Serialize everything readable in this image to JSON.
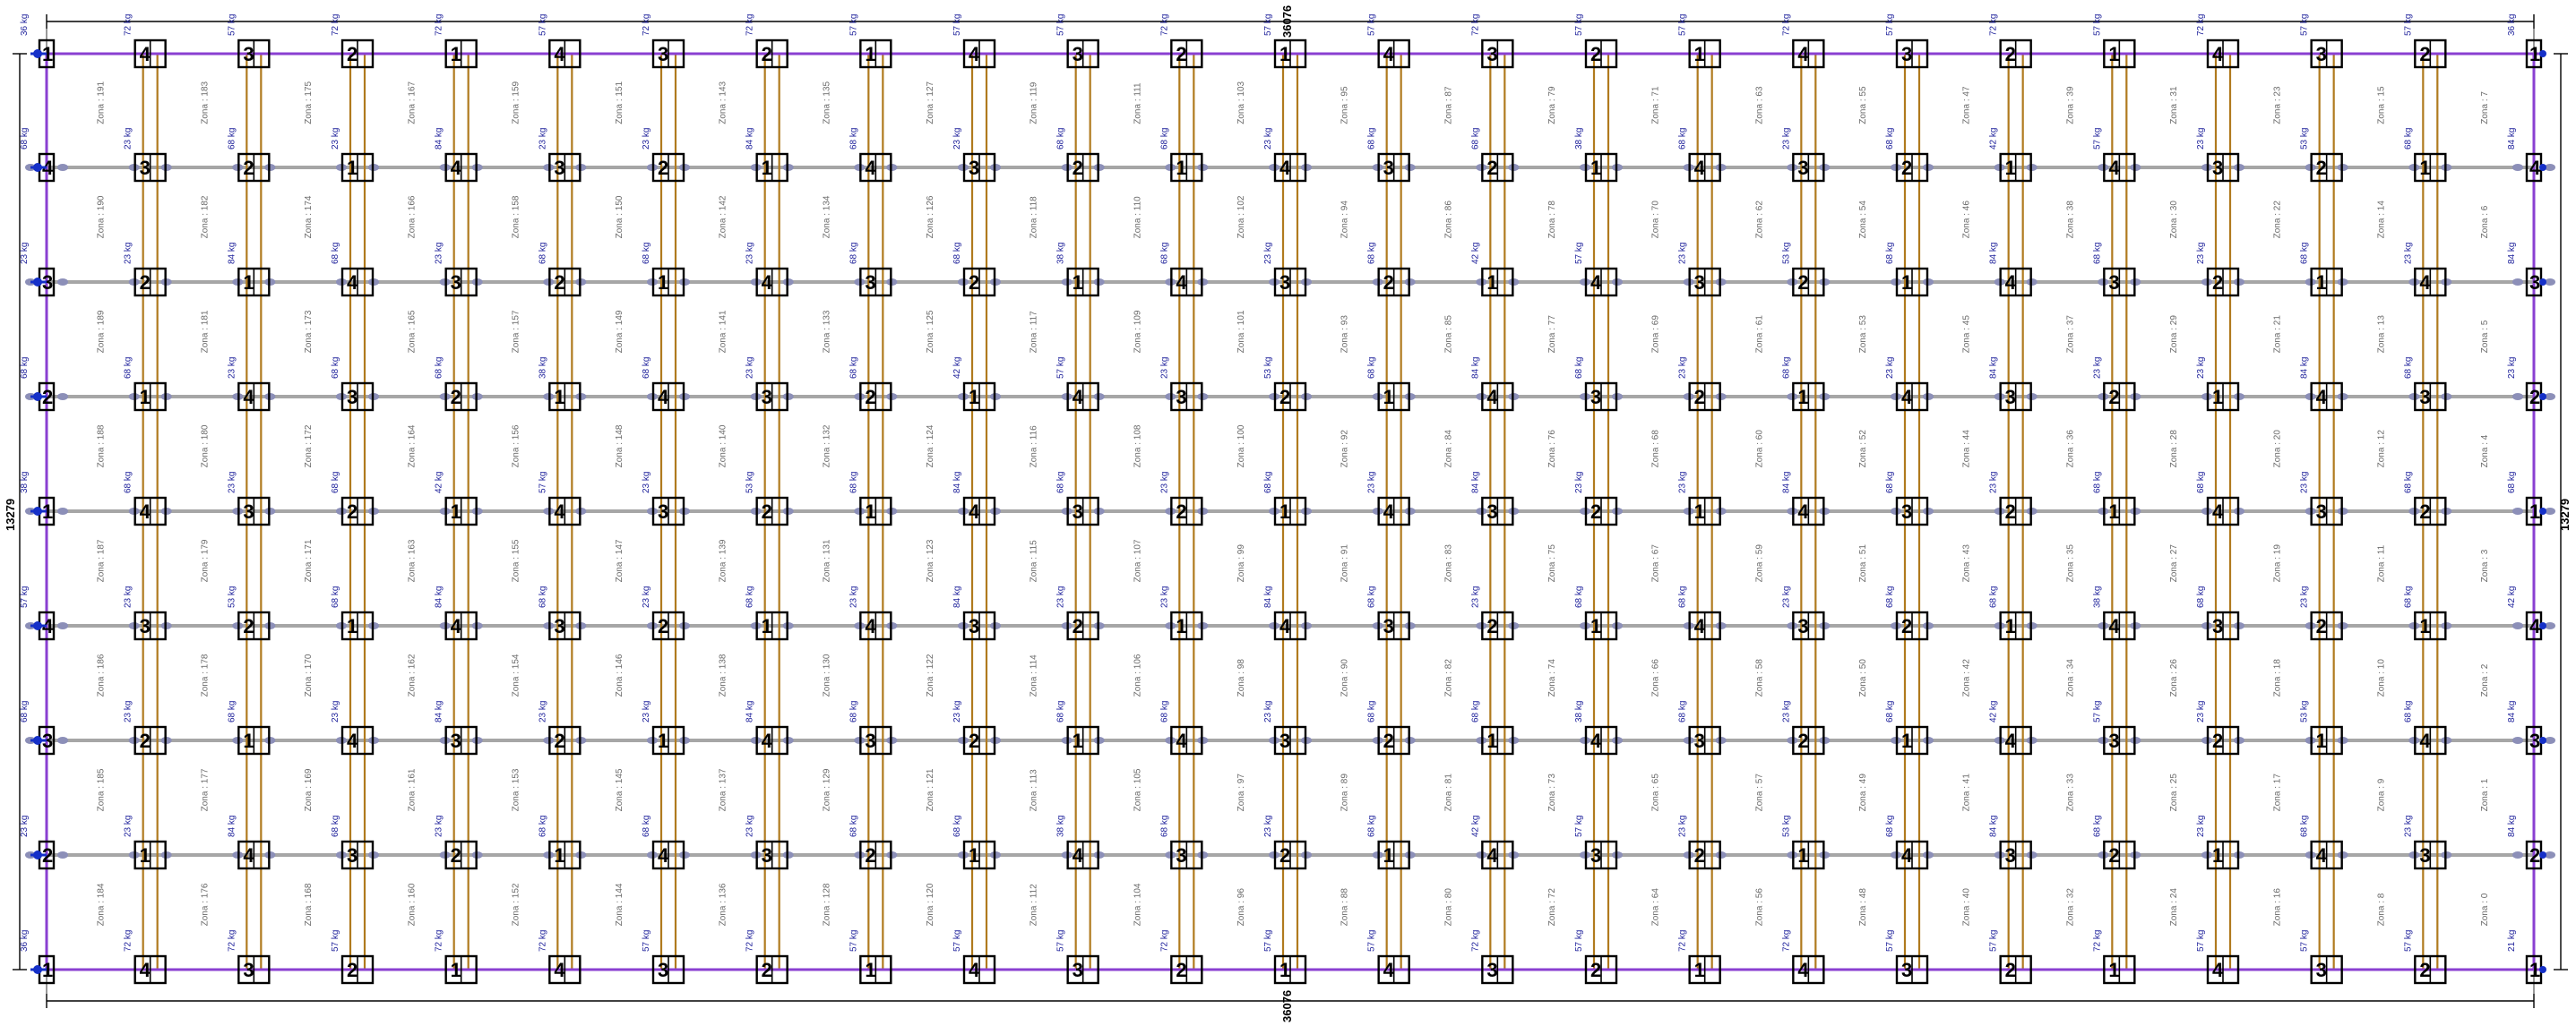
{
  "dimensions": {
    "top_length": "36076",
    "bottom_length": "36076",
    "left_height": "13279",
    "right_height": "13279"
  },
  "colors": {
    "purple_beam": "#8a3fd1",
    "brown_joist": "#b07a1e",
    "grey_member": "#a6a6a6",
    "blue_support": "#1530c8",
    "dimension": "#000000"
  },
  "legend_weights": [
    "72 kg",
    "57 kg",
    "68 kg",
    "84 kg",
    "23 kg",
    "53 kg",
    "38 kg",
    "42 kg",
    "36 kg",
    "21 kg"
  ],
  "zone_label_prefix": "Zona : ",
  "zone_start": 0,
  "grid": {
    "columns": 24,
    "rows": 9
  },
  "tag_ids": [
    "1",
    "2",
    "3",
    "4"
  ],
  "weight_pattern_top": [
    "36 kg",
    "72 kg",
    "57 kg",
    "72 kg",
    "72 kg",
    "57 kg",
    "72 kg",
    "72 kg",
    "57 kg",
    "57 kg",
    "57 kg",
    "72 kg",
    "57 kg",
    "57 kg",
    "72 kg",
    "57 kg",
    "57 kg",
    "72 kg",
    "57 kg",
    "72 kg",
    "57 kg",
    "72 kg",
    "57 kg",
    "57 kg",
    "36 kg"
  ],
  "weight_pattern_bottom": [
    "36 kg",
    "72 kg",
    "72 kg",
    "57 kg",
    "72 kg",
    "72 kg",
    "57 kg",
    "72 kg",
    "57 kg",
    "57 kg",
    "57 kg",
    "72 kg",
    "57 kg",
    "57 kg",
    "72 kg",
    "57 kg",
    "72 kg",
    "72 kg",
    "57 kg",
    "57 kg",
    "72 kg",
    "57 kg",
    "57 kg",
    "57 kg",
    "21 kg"
  ],
  "weight_pattern_inner": [
    "57 kg",
    "23 kg",
    "53 kg",
    "68 kg",
    "84 kg",
    "68 kg",
    "23 kg",
    "68 kg",
    "23 kg",
    "84 kg",
    "23 kg",
    "23 kg",
    "84 kg",
    "68 kg",
    "23 kg",
    "68 kg",
    "68 kg",
    "23 kg",
    "68 kg",
    "68 kg",
    "38 kg",
    "68 kg",
    "23 kg",
    "68 kg",
    "42 kg"
  ]
}
